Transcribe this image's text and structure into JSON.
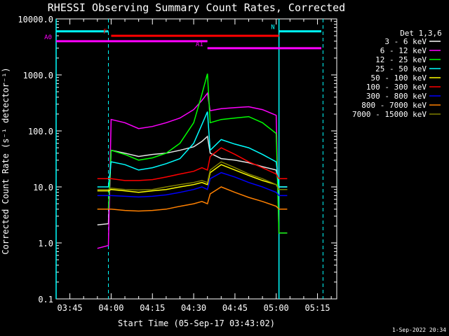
{
  "chart_data": {
    "type": "line",
    "title": "RHESSI Observing Summary Count Rates, Corrected",
    "xlabel": "Start Time (05-Sep-17 03:43:02)",
    "ylabel": "Corrected Count Rate (s⁻¹ detector⁻¹)",
    "yscale": "log",
    "ylim": [
      0.1,
      10000
    ],
    "xlim": [
      "03:40",
      "05:22"
    ],
    "x_ticks": [
      "03:45",
      "04:00",
      "04:15",
      "04:30",
      "04:45",
      "05:00",
      "05:15"
    ],
    "y_ticks": [
      "0.1",
      "1.0",
      "10.0",
      "100.0",
      "1000.0",
      "10000.0"
    ],
    "legend_title": "Det 1,3,6",
    "legend_position": "right",
    "footer": "1-Sep-2022 20:34",
    "markers": {
      "vertical_solid": [
        "03:40",
        "05:01"
      ],
      "vertical_dashed": [
        "03:59",
        "05:17"
      ],
      "bars": [
        {
          "label": "N",
          "color": "#00ffff",
          "segments": [
            [
              "03:40",
              "03:59"
            ],
            [
              "05:01",
              "05:19"
            ]
          ],
          "level": 6000
        },
        {
          "label": "F",
          "color": "#ff0000",
          "segments": [
            [
              "04:00",
              "05:01"
            ]
          ],
          "level": 5000
        },
        {
          "label": "A0",
          "color": "#ff00ff",
          "segments": [
            [
              "03:40",
              "04:35"
            ]
          ],
          "level": 4000
        },
        {
          "label": "A1",
          "color": "#ff00ff",
          "segments": [
            [
              "04:35",
              "05:19"
            ]
          ],
          "level": 3000
        }
      ]
    },
    "series": [
      {
        "name": "3 - 6 keV",
        "color": "#000000",
        "x": [
          "03:55",
          "03:59",
          "04:00",
          "04:05",
          "04:10",
          "04:15",
          "04:20",
          "04:25",
          "04:30",
          "04:33",
          "04:35",
          "04:36",
          "04:40",
          "04:45",
          "04:50",
          "04:55",
          "05:00",
          "05:01",
          "05:04"
        ],
        "y": [
          2.1,
          2.2,
          45,
          40,
          35,
          38,
          40,
          45,
          52,
          65,
          80,
          40,
          32,
          30,
          27,
          23,
          20,
          10,
          10
        ]
      },
      {
        "name": "6 - 12 keV",
        "color": "#ff00ff",
        "x": [
          "03:55",
          "03:59",
          "04:00",
          "04:05",
          "04:10",
          "04:15",
          "04:20",
          "04:25",
          "04:30",
          "04:33",
          "04:35",
          "04:36",
          "04:40",
          "04:45",
          "04:50",
          "04:55",
          "05:00",
          "05:01",
          "05:04"
        ],
        "y": [
          0.8,
          0.9,
          160,
          140,
          110,
          120,
          140,
          170,
          240,
          350,
          470,
          230,
          250,
          260,
          270,
          240,
          190,
          1.5,
          1.5
        ]
      },
      {
        "name": "12 - 25 keV",
        "color": "#00ff00",
        "x": [
          "03:55",
          "03:59",
          "04:00",
          "04:05",
          "04:10",
          "04:15",
          "04:20",
          "04:25",
          "04:30",
          "04:33",
          "04:35",
          "04:36",
          "04:40",
          "04:45",
          "04:50",
          "04:55",
          "05:00",
          "05:01",
          "05:04"
        ],
        "y": [
          4,
          4,
          45,
          38,
          30,
          33,
          40,
          60,
          140,
          450,
          1050,
          140,
          160,
          170,
          180,
          140,
          90,
          1.5,
          1.5
        ]
      },
      {
        "name": "25 - 50 keV",
        "color": "#00ffff",
        "x": [
          "03:55",
          "03:59",
          "04:00",
          "04:05",
          "04:10",
          "04:15",
          "04:20",
          "04:25",
          "04:30",
          "04:33",
          "04:35",
          "04:36",
          "04:40",
          "04:45",
          "04:50",
          "04:55",
          "05:00",
          "05:01",
          "05:04"
        ],
        "y": [
          10,
          10,
          28,
          25,
          20,
          22,
          26,
          32,
          60,
          130,
          220,
          45,
          70,
          58,
          50,
          38,
          28,
          10,
          10
        ]
      },
      {
        "name": "50 - 100 keV",
        "color": "#ffff00",
        "x": [
          "03:55",
          "03:59",
          "04:00",
          "04:05",
          "04:10",
          "04:15",
          "04:20",
          "04:25",
          "04:30",
          "04:33",
          "04:35",
          "04:36",
          "04:40",
          "04:45",
          "04:50",
          "04:55",
          "05:00",
          "05:01",
          "05:04"
        ],
        "y": [
          8.5,
          8.5,
          9,
          8.5,
          8,
          8.5,
          9,
          10,
          11,
          12,
          11,
          18,
          25,
          20,
          16,
          13,
          11,
          9,
          9
        ]
      },
      {
        "name": "100 - 300 keV",
        "color": "#ff0000",
        "x": [
          "03:55",
          "03:59",
          "04:00",
          "04:05",
          "04:10",
          "04:15",
          "04:20",
          "04:25",
          "04:30",
          "04:33",
          "04:35",
          "04:36",
          "04:40",
          "04:45",
          "04:50",
          "04:55",
          "05:00",
          "05:01",
          "05:04"
        ],
        "y": [
          14,
          14,
          14,
          13,
          13,
          13.5,
          15,
          17,
          19,
          22,
          20,
          35,
          50,
          38,
          28,
          22,
          17,
          14,
          14
        ]
      },
      {
        "name": "300 - 800 keV",
        "color": "#0000ff",
        "x": [
          "03:55",
          "03:59",
          "04:00",
          "04:05",
          "04:10",
          "04:15",
          "04:20",
          "04:25",
          "04:30",
          "04:33",
          "04:35",
          "04:36",
          "04:40",
          "04:45",
          "04:50",
          "04:55",
          "05:00",
          "05:01",
          "05:04"
        ],
        "y": [
          7,
          7,
          7,
          6.8,
          6.6,
          6.8,
          7.2,
          8,
          9,
          10,
          9,
          14,
          18,
          15,
          12,
          10,
          8,
          7,
          7
        ]
      },
      {
        "name": "800 - 7000 keV",
        "color": "#ff8000",
        "x": [
          "03:55",
          "03:59",
          "04:00",
          "04:05",
          "04:10",
          "04:15",
          "04:20",
          "04:25",
          "04:30",
          "04:33",
          "04:35",
          "04:36",
          "04:40",
          "04:45",
          "04:50",
          "04:55",
          "05:00",
          "05:01",
          "05:04"
        ],
        "y": [
          4,
          4,
          4,
          3.8,
          3.7,
          3.8,
          4,
          4.5,
          5,
          5.5,
          5,
          7.5,
          10,
          8,
          6.5,
          5.5,
          4.5,
          4,
          4
        ]
      },
      {
        "name": "7000 - 15000 keV",
        "color": "#808000",
        "x": [
          "03:55",
          "03:59",
          "04:00",
          "04:05",
          "04:10",
          "04:15",
          "04:20",
          "04:25",
          "04:30",
          "04:33",
          "04:35",
          "04:36",
          "04:40",
          "04:45",
          "04:50",
          "04:55",
          "05:00",
          "05:01",
          "05:04"
        ],
        "y": [
          9,
          9,
          9.5,
          9,
          8.8,
          9,
          10,
          11,
          12,
          13,
          12,
          20,
          28,
          22,
          17,
          14,
          11,
          9,
          9
        ]
      }
    ]
  }
}
